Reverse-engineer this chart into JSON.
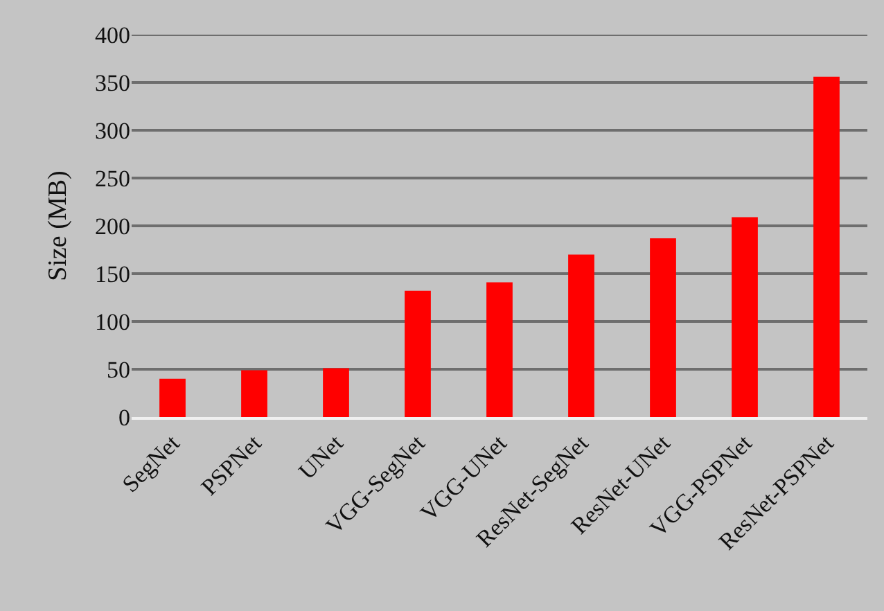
{
  "chart_data": {
    "type": "bar",
    "ylabel": "Size (MB)",
    "categories": [
      "SegNet",
      "PSPNet",
      "UNet",
      "VGG-SegNet",
      "VGG-UNet",
      "ResNet-SegNet",
      "ResNet-UNet",
      "VGG-PSPNet",
      "ResNet-PSPNet"
    ],
    "values": [
      40,
      49,
      51,
      132,
      141,
      170,
      187,
      209,
      356
    ],
    "color": "#ff0000",
    "ylim": [
      0,
      400
    ],
    "yticks": [
      0,
      50,
      100,
      150,
      200,
      250,
      300,
      350,
      400
    ],
    "grid": "y"
  }
}
